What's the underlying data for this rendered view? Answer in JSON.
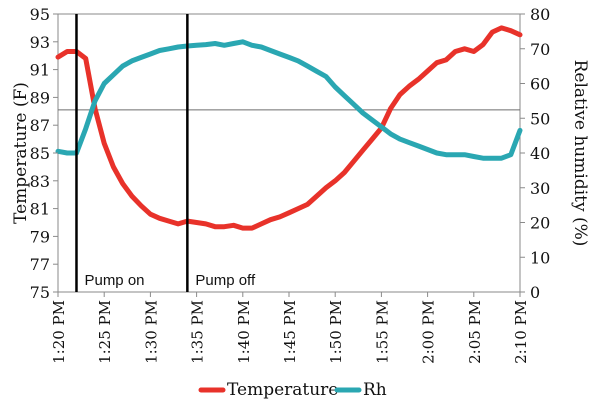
{
  "chart_data": {
    "type": "line",
    "title": "",
    "x_ticks": [
      "1:20 PM",
      "1:25 PM",
      "1:30 PM",
      "1:35 PM",
      "1:40 PM",
      "1:45 PM",
      "1:50 PM",
      "1:55 PM",
      "2:00 PM",
      "2:05 PM",
      "2:10 PM"
    ],
    "x_range": [
      "1:20 PM",
      "2:10 PM"
    ],
    "y_left": {
      "label": "Temperature (F)",
      "range": [
        75,
        95
      ],
      "ticks": [
        75,
        77,
        79,
        81,
        83,
        85,
        87,
        89,
        91,
        93,
        95
      ]
    },
    "y_right": {
      "label": "Relative humidity (%)",
      "range": [
        0,
        80
      ],
      "ticks": [
        0,
        10,
        20,
        30,
        40,
        50,
        60,
        70,
        80
      ]
    },
    "reference_line": {
      "axis": "left",
      "value": 88.1
    },
    "annotations": [
      {
        "time": "1:22 PM",
        "label": "Pump on"
      },
      {
        "time": "1:34 PM",
        "label": "Pump off"
      }
    ],
    "legend": {
      "position": "bottom"
    },
    "series": [
      {
        "name": "Temperature",
        "axis": "left",
        "color": "#e8322a",
        "x": [
          "1:20 PM",
          "1:21 PM",
          "1:22 PM",
          "1:22 PM",
          "1:23 PM",
          "1:24 PM",
          "1:25 PM",
          "1:26 PM",
          "1:27 PM",
          "1:28 PM",
          "1:29 PM",
          "1:30 PM",
          "1:31 PM",
          "1:32 PM",
          "1:33 PM",
          "1:34 PM",
          "1:35 PM",
          "1:36 PM",
          "1:37 PM",
          "1:38 PM",
          "1:39 PM",
          "1:40 PM",
          "1:41 PM",
          "1:42 PM",
          "1:43 PM",
          "1:44 PM",
          "1:45 PM",
          "1:46 PM",
          "1:47 PM",
          "1:48 PM",
          "1:49 PM",
          "1:50 PM",
          "1:51 PM",
          "1:52 PM",
          "1:53 PM",
          "1:54 PM",
          "1:55 PM",
          "1:56 PM",
          "1:57 PM",
          "1:58 PM",
          "1:59 PM",
          "2:00 PM",
          "2:01 PM",
          "2:02 PM",
          "2:03 PM",
          "2:04 PM",
          "2:05 PM",
          "2:06 PM",
          "2:07 PM",
          "2:08 PM",
          "2:09 PM",
          "2:10 PM"
        ],
        "y": [
          91.9,
          92.3,
          92.3,
          92.3,
          91.8,
          88.2,
          85.7,
          84.0,
          82.8,
          81.9,
          81.2,
          80.6,
          80.3,
          80.1,
          79.9,
          80.1,
          80.0,
          79.9,
          79.7,
          79.7,
          79.8,
          79.6,
          79.6,
          79.9,
          80.2,
          80.4,
          80.7,
          81.0,
          81.3,
          81.9,
          82.5,
          83.0,
          83.6,
          84.4,
          85.2,
          86.0,
          86.8,
          88.2,
          89.2,
          89.8,
          90.3,
          90.9,
          91.5,
          91.7,
          92.3,
          92.5,
          92.3,
          92.8,
          93.7,
          94.0,
          93.8,
          93.5
        ]
      },
      {
        "name": "Rh",
        "axis": "right",
        "color": "#2aa7b2",
        "x": [
          "1:20 PM",
          "1:21 PM",
          "1:22 PM",
          "1:22 PM",
          "1:23 PM",
          "1:24 PM",
          "1:25 PM",
          "1:26 PM",
          "1:27 PM",
          "1:28 PM",
          "1:29 PM",
          "1:30 PM",
          "1:31 PM",
          "1:32 PM",
          "1:33 PM",
          "1:34 PM",
          "1:35 PM",
          "1:36 PM",
          "1:37 PM",
          "1:38 PM",
          "1:39 PM",
          "1:40 PM",
          "1:41 PM",
          "1:42 PM",
          "1:43 PM",
          "1:44 PM",
          "1:45 PM",
          "1:46 PM",
          "1:47 PM",
          "1:48 PM",
          "1:49 PM",
          "1:50 PM",
          "1:51 PM",
          "1:52 PM",
          "1:53 PM",
          "1:54 PM",
          "1:55 PM",
          "1:56 PM",
          "1:57 PM",
          "1:58 PM",
          "1:59 PM",
          "2:00 PM",
          "2:01 PM",
          "2:02 PM",
          "2:03 PM",
          "2:04 PM",
          "2:05 PM",
          "2:06 PM",
          "2:07 PM",
          "2:08 PM",
          "2:09 PM",
          "2:10 PM"
        ],
        "y": [
          40.5,
          40.0,
          40.0,
          40.0,
          47.0,
          55.0,
          60.0,
          62.5,
          65.0,
          66.5,
          67.5,
          68.5,
          69.5,
          70.0,
          70.5,
          70.8,
          71.0,
          71.2,
          71.5,
          71.0,
          71.5,
          72.0,
          71.0,
          70.5,
          69.5,
          68.5,
          67.5,
          66.5,
          65.0,
          63.5,
          62.0,
          59.0,
          56.5,
          54.0,
          51.5,
          49.5,
          47.5,
          45.5,
          44.0,
          43.0,
          42.0,
          41.0,
          40.0,
          39.5,
          39.5,
          39.5,
          39.0,
          38.5,
          38.5,
          38.5,
          39.5,
          46.5
        ]
      }
    ]
  }
}
